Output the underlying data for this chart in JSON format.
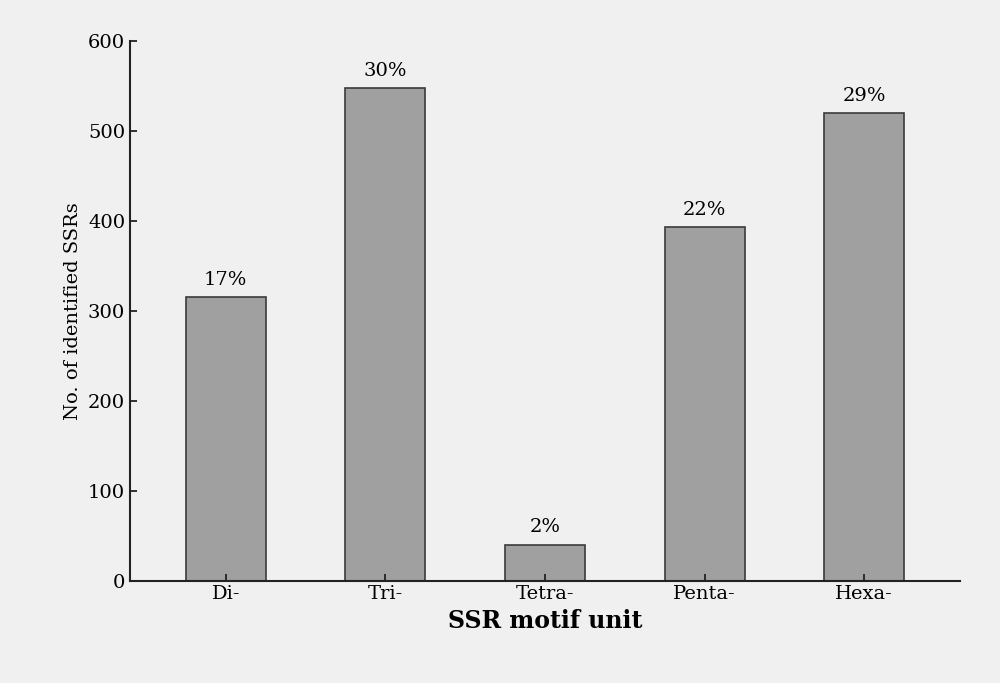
{
  "categories": [
    "Di-",
    "Tri-",
    "Tetra-",
    "Penta-",
    "Hexa-"
  ],
  "values": [
    315,
    548,
    40,
    393,
    520
  ],
  "percentages": [
    "17%",
    "30%",
    "2%",
    "22%",
    "29%"
  ],
  "bar_color": "#a0a0a0",
  "bar_edgecolor": "#3a3a3a",
  "title": "",
  "xlabel": "SSR motif unit",
  "ylabel": "No. of identified SSRs",
  "ylim": [
    0,
    600
  ],
  "yticks": [
    0,
    100,
    200,
    300,
    400,
    500,
    600
  ],
  "background_color": "#f0f0f0",
  "xlabel_fontsize": 17,
  "ylabel_fontsize": 14,
  "tick_fontsize": 14,
  "label_fontsize": 14,
  "bar_width": 0.5
}
